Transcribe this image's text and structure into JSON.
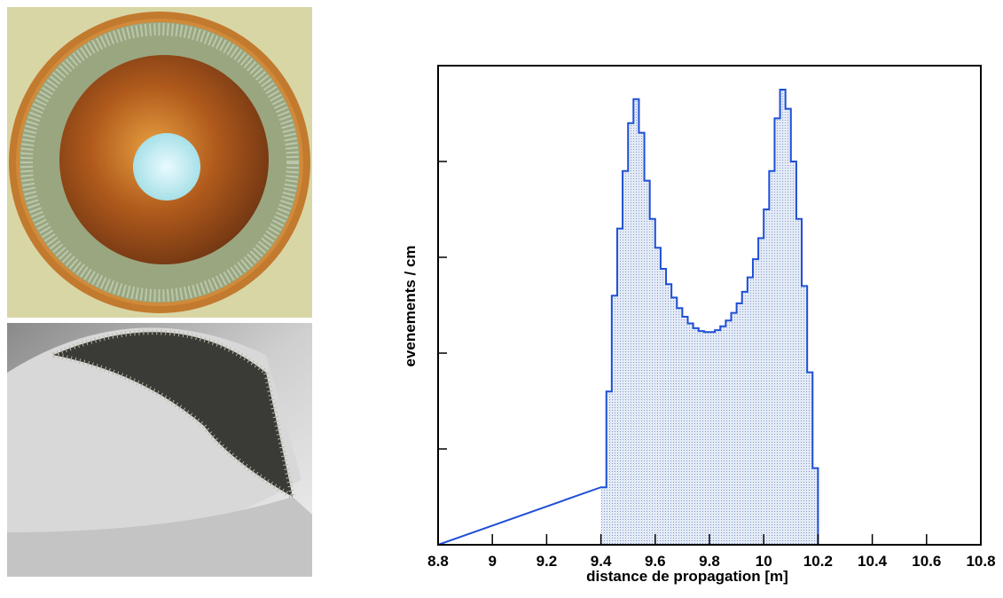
{
  "chart_data": {
    "type": "histogram",
    "xlabel": "distance de propagation [m]",
    "ylabel": "evenements / cm",
    "bins": [
      9.4,
      9.42,
      9.44,
      9.46,
      9.48,
      9.5,
      9.52,
      9.54,
      9.56,
      9.58,
      9.6,
      9.62,
      9.64,
      9.66,
      9.68,
      9.7,
      9.72,
      9.74,
      9.76,
      9.78,
      9.8,
      9.82,
      9.84,
      9.86,
      9.88,
      9.9,
      9.92,
      9.94,
      9.96,
      9.98,
      10,
      10.02,
      10.04,
      10.06,
      10.08,
      10.1,
      10.12,
      10.14,
      10.16,
      10.18,
      10.2
    ],
    "counts": [
      0.6,
      1.6,
      2.6,
      3.3,
      3.9,
      4.4,
      4.65,
      4.3,
      3.8,
      3.4,
      3.1,
      2.88,
      2.72,
      2.58,
      2.47,
      2.38,
      2.31,
      2.26,
      2.23,
      2.22,
      2.22,
      2.24,
      2.28,
      2.34,
      2.42,
      2.52,
      2.64,
      2.79,
      2.98,
      3.2,
      3.5,
      3.9,
      4.45,
      4.75,
      4.55,
      4.0,
      3.4,
      2.7,
      1.8,
      0.8
    ],
    "color": "#1f4fd6",
    "xlim": [
      8.8,
      10.8
    ],
    "xticks": [
      8.8,
      9,
      9.2,
      9.4,
      9.6,
      9.8,
      10,
      10.2,
      10.4,
      10.6,
      10.8
    ],
    "ylim": [
      0,
      5
    ],
    "yticks": [
      0,
      1,
      2,
      3,
      4
    ]
  }
}
